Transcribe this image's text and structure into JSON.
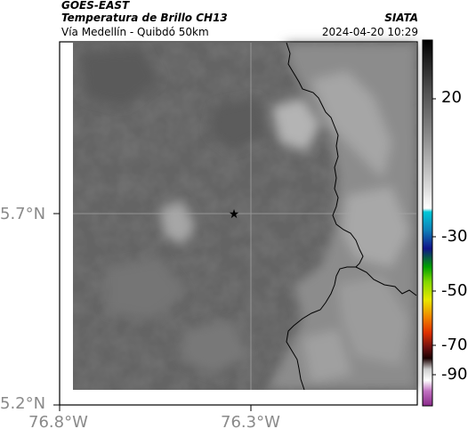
{
  "header": {
    "satellite": "GOES-EAST",
    "product": "Temperatura de Brillo CH13",
    "organization": "SIATA",
    "region": "Vía Medellín - Quibdó 50km",
    "datetime": "2024-04-20 10:29"
  },
  "axes": {
    "lat_labels": [
      "5.7°N",
      "5.2°N"
    ],
    "lon_labels": [
      "76.8°W",
      "76.3°W"
    ]
  },
  "colorbar": {
    "tick_labels": [
      "20",
      "-30",
      "-50",
      "-70",
      "-90"
    ],
    "colors": [
      "#000000",
      "#7a7a7a",
      "#ffffff",
      "#00c8d8",
      "#10138a",
      "#00a000",
      "#e8e800",
      "#e03000",
      "#2a0000",
      "#c0c0c0",
      "#b03cb0"
    ]
  },
  "map": {
    "marker": "star-icon",
    "grid": true
  }
}
